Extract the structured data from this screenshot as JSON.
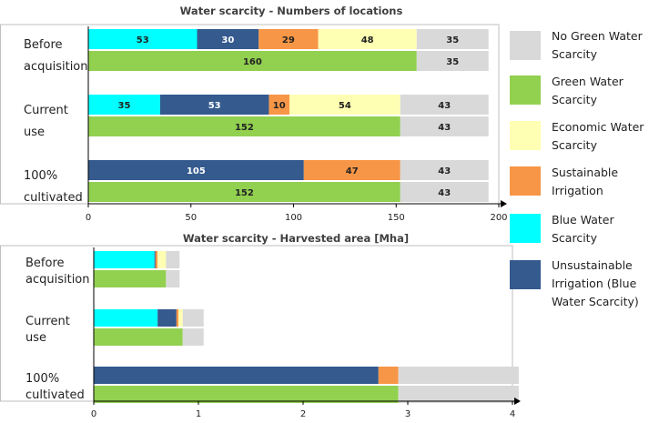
{
  "colors": {
    "blue_water": "#00FFFF",
    "unsustainable": "#345A8E",
    "sustainable": "#F79646",
    "economic": "#FFFFB3",
    "no_green": "#D9D9D9",
    "green": "#92D050"
  },
  "legend": [
    {
      "key": "no_green",
      "label": "No Green Water Scarcity"
    },
    {
      "key": "green",
      "label": "Green Water Scarcity"
    },
    {
      "key": "economic",
      "label": "Economic Water Scarcity"
    },
    {
      "key": "sustainable",
      "label": "Sustainable Irrigation"
    },
    {
      "key": "blue_water",
      "label": "Blue Water Scarcity"
    },
    {
      "key": "unsustainable",
      "label": "Unsustainable Irrigation (Blue Water Scarcity)"
    }
  ],
  "chart_data": [
    {
      "type": "bar",
      "orientation": "horizontal-stacked",
      "title": "Water scarcity - Numbers of locations",
      "xlim": [
        0,
        200
      ],
      "xticks": [
        0,
        50,
        100,
        150,
        200
      ],
      "show_value_labels": true,
      "groups": [
        {
          "label": [
            "Before",
            "acquisition"
          ],
          "bars": [
            [
              {
                "key": "blue_water",
                "value": 53
              },
              {
                "key": "unsustainable",
                "value": 30
              },
              {
                "key": "sustainable",
                "value": 29
              },
              {
                "key": "economic",
                "value": 48
              },
              {
                "key": "no_green",
                "value": 35
              }
            ],
            [
              {
                "key": "green",
                "value": 160
              },
              {
                "key": "no_green",
                "value": 35
              }
            ]
          ]
        },
        {
          "label": [
            "Current",
            "use"
          ],
          "bars": [
            [
              {
                "key": "blue_water",
                "value": 35
              },
              {
                "key": "unsustainable",
                "value": 53
              },
              {
                "key": "sustainable",
                "value": 10
              },
              {
                "key": "economic",
                "value": 54
              },
              {
                "key": "no_green",
                "value": 43
              }
            ],
            [
              {
                "key": "green",
                "value": 152
              },
              {
                "key": "no_green",
                "value": 43
              }
            ]
          ]
        },
        {
          "label": [
            "100%",
            "cultivated"
          ],
          "bars": [
            [
              {
                "key": "unsustainable",
                "value": 105
              },
              {
                "key": "sustainable",
                "value": 47
              },
              {
                "key": "no_green",
                "value": 43
              }
            ],
            [
              {
                "key": "green",
                "value": 152
              },
              {
                "key": "no_green",
                "value": 43
              }
            ]
          ]
        }
      ]
    },
    {
      "type": "bar",
      "orientation": "horizontal-stacked",
      "title": "Water scarcity - Harvested area [Mha]",
      "xlim": [
        0,
        4
      ],
      "xticks": [
        0,
        1,
        2,
        3,
        4
      ],
      "show_value_labels": false,
      "groups": [
        {
          "label": [
            "Before",
            "acquisition"
          ],
          "bars": [
            [
              {
                "key": "blue_water",
                "value": 0.58
              },
              {
                "key": "unsustainable",
                "value": 0.01
              },
              {
                "key": "sustainable",
                "value": 0.02
              },
              {
                "key": "economic",
                "value": 0.08
              },
              {
                "key": "no_green",
                "value": 0.13
              }
            ],
            [
              {
                "key": "green",
                "value": 0.69
              },
              {
                "key": "no_green",
                "value": 0.13
              }
            ]
          ]
        },
        {
          "label": [
            "Current",
            "use"
          ],
          "bars": [
            [
              {
                "key": "blue_water",
                "value": 0.61
              },
              {
                "key": "unsustainable",
                "value": 0.18
              },
              {
                "key": "sustainable",
                "value": 0.02
              },
              {
                "key": "economic",
                "value": 0.04
              },
              {
                "key": "no_green",
                "value": 0.2
              }
            ],
            [
              {
                "key": "green",
                "value": 0.85
              },
              {
                "key": "no_green",
                "value": 0.2
              }
            ]
          ]
        },
        {
          "label": [
            "100%",
            "cultivated"
          ],
          "bars": [
            [
              {
                "key": "unsustainable",
                "value": 2.72
              },
              {
                "key": "sustainable",
                "value": 0.19
              },
              {
                "key": "no_green",
                "value": 1.15
              }
            ],
            [
              {
                "key": "green",
                "value": 2.91
              },
              {
                "key": "no_green",
                "value": 1.15
              }
            ]
          ]
        }
      ]
    }
  ]
}
